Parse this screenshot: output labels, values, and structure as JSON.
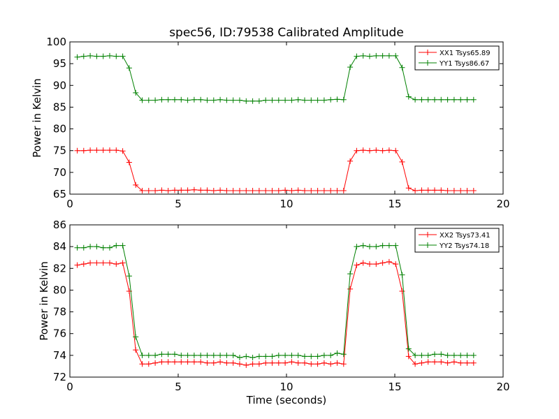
{
  "chart_data": [
    {
      "type": "line",
      "title": "spec56, ID:79538 Calibrated Amplitude",
      "xlabel": "",
      "ylabel": "Power in Kelvin",
      "xlim": [
        0,
        20
      ],
      "ylim": [
        65,
        100
      ],
      "xticks": [
        0,
        5,
        10,
        15,
        20
      ],
      "yticks": [
        65,
        70,
        75,
        80,
        85,
        90,
        95,
        100
      ],
      "grid": false,
      "legend": "top-right",
      "x": [
        0.34,
        0.64,
        0.94,
        1.24,
        1.54,
        1.84,
        2.14,
        2.44,
        2.74,
        3.04,
        3.34,
        3.64,
        3.94,
        4.24,
        4.54,
        4.84,
        5.14,
        5.44,
        5.74,
        6.04,
        6.34,
        6.64,
        6.94,
        7.24,
        7.54,
        7.84,
        8.14,
        8.44,
        8.74,
        9.04,
        9.34,
        9.64,
        9.94,
        10.24,
        10.54,
        10.84,
        11.14,
        11.44,
        11.74,
        12.04,
        12.34,
        12.64,
        12.94,
        13.24,
        13.54,
        13.84,
        14.14,
        14.44,
        14.74,
        15.04,
        15.34,
        15.64,
        15.94,
        16.24,
        16.54,
        16.84,
        17.14,
        17.44,
        17.74,
        18.04,
        18.34,
        18.64
      ],
      "series": [
        {
          "name": "XX1 Tsys65.89",
          "color": "#ff0000",
          "values": [
            75.0,
            75.0,
            75.1,
            75.1,
            75.1,
            75.1,
            75.1,
            74.9,
            72.3,
            67.1,
            65.8,
            65.8,
            65.8,
            65.9,
            65.8,
            65.9,
            65.9,
            65.9,
            66.0,
            65.9,
            65.9,
            65.8,
            65.9,
            65.8,
            65.8,
            65.8,
            65.8,
            65.8,
            65.8,
            65.8,
            65.8,
            65.8,
            65.9,
            65.8,
            65.9,
            65.8,
            65.8,
            65.8,
            65.8,
            65.8,
            65.8,
            65.8,
            72.6,
            75.0,
            75.1,
            75.0,
            75.1,
            75.0,
            75.1,
            75.0,
            72.4,
            66.4,
            65.8,
            65.9,
            65.9,
            65.9,
            65.9,
            65.8,
            65.8,
            65.8,
            65.8,
            65.8
          ]
        },
        {
          "name": "YY1 Tsys86.67",
          "color": "#008000",
          "values": [
            96.5,
            96.7,
            96.8,
            96.7,
            96.7,
            96.8,
            96.7,
            96.7,
            94.0,
            88.3,
            86.6,
            86.6,
            86.6,
            86.7,
            86.7,
            86.7,
            86.7,
            86.6,
            86.7,
            86.7,
            86.6,
            86.6,
            86.7,
            86.6,
            86.6,
            86.6,
            86.4,
            86.4,
            86.4,
            86.6,
            86.6,
            86.6,
            86.6,
            86.6,
            86.7,
            86.6,
            86.6,
            86.6,
            86.6,
            86.7,
            86.8,
            86.7,
            94.2,
            96.7,
            96.8,
            96.7,
            96.8,
            96.8,
            96.8,
            96.8,
            94.1,
            87.4,
            86.7,
            86.7,
            86.7,
            86.7,
            86.7,
            86.7,
            86.7,
            86.7,
            86.7,
            86.7
          ]
        }
      ]
    },
    {
      "type": "line",
      "title": "",
      "xlabel": "Time (seconds)",
      "ylabel": "Power in Kelvin",
      "xlim": [
        0,
        20
      ],
      "ylim": [
        72,
        86
      ],
      "xticks": [
        0,
        5,
        10,
        15,
        20
      ],
      "yticks": [
        72,
        74,
        76,
        78,
        80,
        82,
        84,
        86
      ],
      "grid": false,
      "legend": "top-right",
      "x": [
        0.34,
        0.64,
        0.94,
        1.24,
        1.54,
        1.84,
        2.14,
        2.44,
        2.74,
        3.04,
        3.34,
        3.64,
        3.94,
        4.24,
        4.54,
        4.84,
        5.14,
        5.44,
        5.74,
        6.04,
        6.34,
        6.64,
        6.94,
        7.24,
        7.54,
        7.84,
        8.14,
        8.44,
        8.74,
        9.04,
        9.34,
        9.64,
        9.94,
        10.24,
        10.54,
        10.84,
        11.14,
        11.44,
        11.74,
        12.04,
        12.34,
        12.64,
        12.94,
        13.24,
        13.54,
        13.84,
        14.14,
        14.44,
        14.74,
        15.04,
        15.34,
        15.64,
        15.94,
        16.24,
        16.54,
        16.84,
        17.14,
        17.44,
        17.74,
        18.04,
        18.34,
        18.64
      ],
      "series": [
        {
          "name": "XX2 Tsys73.41",
          "color": "#ff0000",
          "values": [
            82.3,
            82.4,
            82.5,
            82.5,
            82.5,
            82.5,
            82.4,
            82.5,
            79.9,
            74.5,
            73.2,
            73.2,
            73.3,
            73.4,
            73.4,
            73.4,
            73.4,
            73.4,
            73.4,
            73.4,
            73.3,
            73.3,
            73.4,
            73.3,
            73.3,
            73.2,
            73.1,
            73.2,
            73.2,
            73.3,
            73.3,
            73.3,
            73.3,
            73.4,
            73.3,
            73.3,
            73.2,
            73.2,
            73.3,
            73.2,
            73.3,
            73.2,
            80.1,
            82.3,
            82.5,
            82.4,
            82.4,
            82.5,
            82.6,
            82.4,
            79.9,
            73.9,
            73.2,
            73.3,
            73.4,
            73.4,
            73.4,
            73.3,
            73.4,
            73.3,
            73.3,
            73.3
          ]
        },
        {
          "name": "YY2 Tsys74.18",
          "color": "#008000",
          "values": [
            83.9,
            83.9,
            84.0,
            84.0,
            83.9,
            83.9,
            84.1,
            84.1,
            81.3,
            75.7,
            74.0,
            74.0,
            74.0,
            74.1,
            74.1,
            74.1,
            74.0,
            74.0,
            74.0,
            74.0,
            74.0,
            74.0,
            74.0,
            74.0,
            74.0,
            73.8,
            73.9,
            73.8,
            73.9,
            73.9,
            73.9,
            74.0,
            74.0,
            74.0,
            74.0,
            73.9,
            73.9,
            73.9,
            74.0,
            74.0,
            74.2,
            74.1,
            81.5,
            84.0,
            84.1,
            84.0,
            84.0,
            84.1,
            84.1,
            84.1,
            81.4,
            74.6,
            74.0,
            74.0,
            74.0,
            74.1,
            74.1,
            74.0,
            74.0,
            74.0,
            74.0,
            74.0
          ]
        }
      ]
    }
  ]
}
